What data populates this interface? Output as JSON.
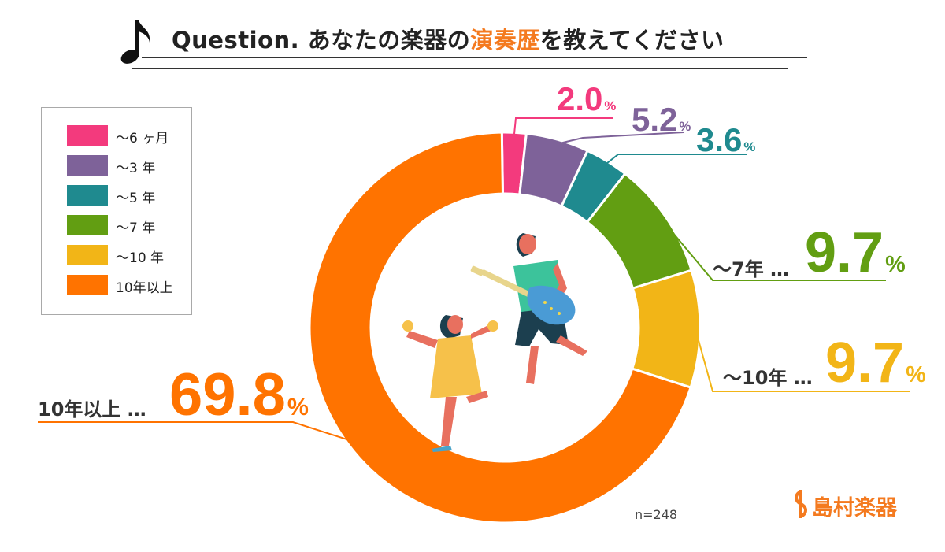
{
  "title": {
    "prefix": "Question.",
    "text_before": "あなたの楽器の",
    "highlight": "演奏歴",
    "text_after": "を教えてください"
  },
  "colors": {
    "accent": "#f47a1f",
    "text": "#333333"
  },
  "chart_data": {
    "type": "pie",
    "donut": true,
    "title": "Question. あなたの楽器の演奏歴を教えてください",
    "categories": [
      "～6ヶ月",
      "～3年",
      "～5年",
      "～7年",
      "～10年",
      "10年以上"
    ],
    "values": [
      2.0,
      5.2,
      3.6,
      9.7,
      9.7,
      69.8
    ],
    "unit": "%",
    "colors": [
      "#f33a7d",
      "#7e6299",
      "#1f8a8f",
      "#629e12",
      "#f2b517",
      "#ff7300"
    ],
    "legend_position": "left",
    "sample_size": "n=248"
  },
  "legend": [
    {
      "label": "～6 ヶ月",
      "color": "#f33a7d"
    },
    {
      "label": "～3 年",
      "color": "#7e6299"
    },
    {
      "label": "～5 年",
      "color": "#1f8a8f"
    },
    {
      "label": "～7 年",
      "color": "#629e12"
    },
    {
      "label": "～10 年",
      "color": "#f2b517"
    },
    {
      "label": "10年以上",
      "color": "#ff7300"
    }
  ],
  "callouts": [
    {
      "value": "2.0",
      "unit": "%",
      "category": ""
    },
    {
      "value": "5.2",
      "unit": "%",
      "category": ""
    },
    {
      "value": "3.6",
      "unit": "%",
      "category": ""
    },
    {
      "value": "9.7",
      "unit": "%",
      "category": "～7年 …"
    },
    {
      "value": "9.7",
      "unit": "%",
      "category": "～10年 …"
    },
    {
      "value": "69.8",
      "unit": "%",
      "category": "10年以上 …"
    }
  ],
  "sample_size": "n=248",
  "brand": {
    "name": "島村楽器"
  }
}
